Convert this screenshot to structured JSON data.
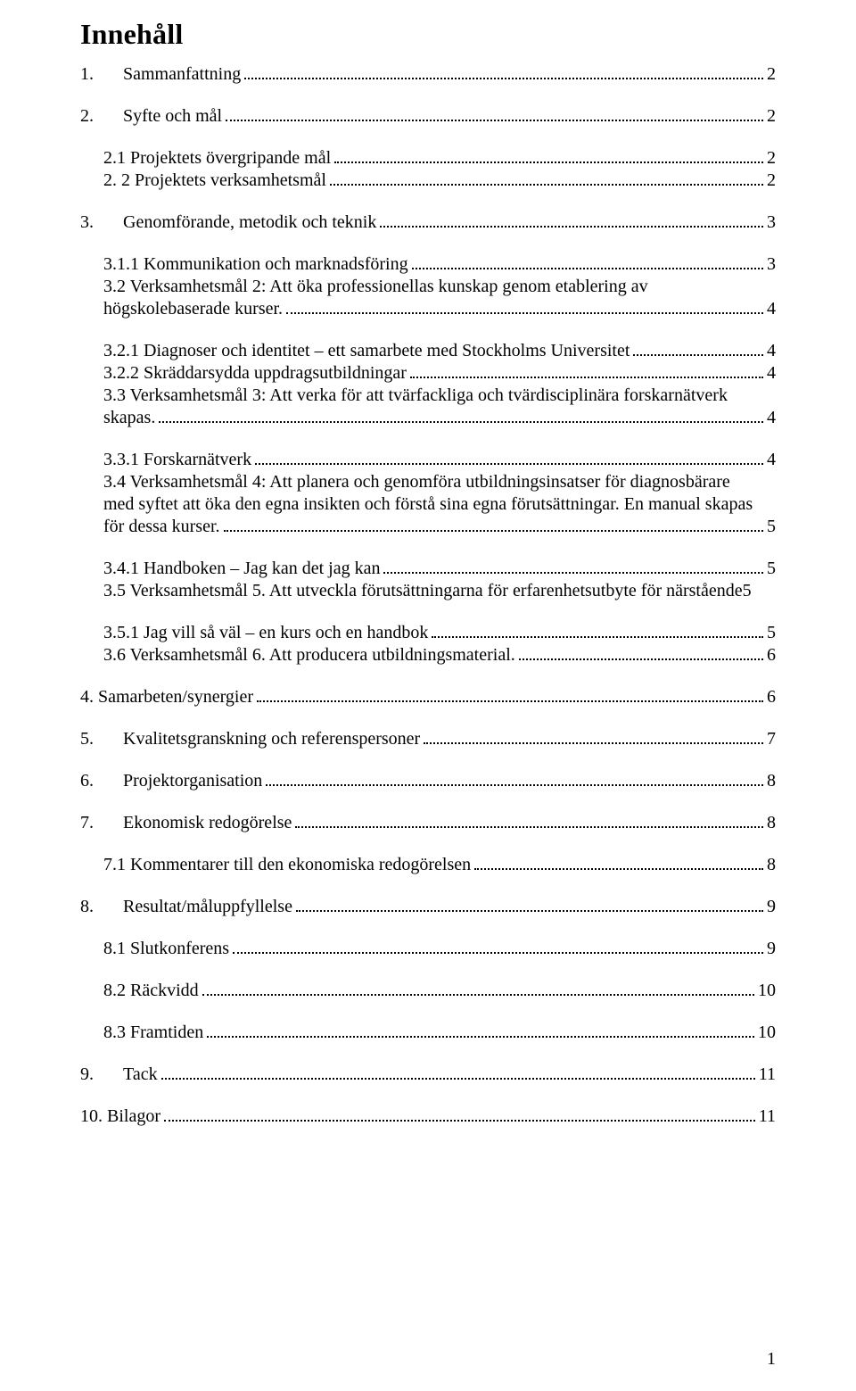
{
  "title": "Innehåll",
  "footer_page": "1",
  "groups": [
    {
      "entries": [
        {
          "indent": 0,
          "num": "1.",
          "num_width": 48,
          "label": "Sammanfattning",
          "page": "2"
        }
      ]
    },
    {
      "entries": [
        {
          "indent": 0,
          "num": "2.",
          "num_width": 48,
          "label": "Syfte och mål",
          "page": "2"
        }
      ]
    },
    {
      "entries": [
        {
          "indent": 1,
          "label": "2.1 Projektets övergripande mål",
          "page": "2"
        },
        {
          "indent": 1,
          "label": "2. 2 Projektets verksamhetsmål",
          "page": "2"
        }
      ]
    },
    {
      "entries": [
        {
          "indent": 0,
          "num": "3.",
          "num_width": 48,
          "label": "Genomförande, metodik och teknik",
          "page": "3"
        }
      ]
    },
    {
      "entries": [
        {
          "indent": 1,
          "label": "3.1.1 Kommunikation och marknadsföring",
          "page": "3"
        },
        {
          "indent": 1,
          "multiline_first": "3.2 Verksamhetsmål 2: Att öka professionellas kunskap genom etablering av",
          "multiline_last": "högskolebaserade kurser.",
          "page": "4"
        }
      ]
    },
    {
      "entries": [
        {
          "indent": 1,
          "label": "3.2.1 Diagnoser och identitet – ett samarbete med Stockholms Universitet",
          "page": "4"
        },
        {
          "indent": 1,
          "label": "3.2.2 Skräddarsydda uppdragsutbildningar",
          "page": "4"
        },
        {
          "indent": 1,
          "multiline_first": "3.3 Verksamhetsmål 3: Att verka för att tvärfackliga och tvärdisciplinära forskarnätverk",
          "multiline_last": "skapas.",
          "page": "4"
        }
      ]
    },
    {
      "entries": [
        {
          "indent": 1,
          "label": "3.3.1 Forskarnätverk",
          "page": "4"
        },
        {
          "indent": 1,
          "multiline_first": "3.4 Verksamhetsmål 4: Att planera och genomföra utbildningsinsatser för diagnosbärare",
          "multiline_mid": "med syftet att öka den egna insikten och förstå sina egna förutsättningar. En manual skapas",
          "multiline_last": "för dessa kurser.",
          "page": "5"
        }
      ]
    },
    {
      "entries": [
        {
          "indent": 1,
          "label": "3.4.1 Handboken – Jag kan det jag kan",
          "page": "5"
        },
        {
          "indent": 1,
          "label": "3.5 Verksamhetsmål 5. Att utveckla förutsättningarna för erfarenhetsutbyte för närstående",
          "page": "5",
          "no_leader": true
        }
      ]
    },
    {
      "entries": [
        {
          "indent": 1,
          "label": "3.5.1 Jag vill så väl – en kurs och en handbok",
          "page": "5"
        },
        {
          "indent": 1,
          "label": "3.6 Verksamhetsmål 6. Att producera utbildningsmaterial.",
          "page": "6"
        }
      ]
    },
    {
      "entries": [
        {
          "indent": 0,
          "label": "4. Samarbeten/synergier",
          "page": "6"
        }
      ]
    },
    {
      "entries": [
        {
          "indent": 0,
          "num": "5.",
          "num_width": 48,
          "label": "Kvalitetsgranskning och referenspersoner",
          "page": "7"
        }
      ]
    },
    {
      "entries": [
        {
          "indent": 0,
          "num": "6.",
          "num_width": 48,
          "label": "Projektorganisation",
          "page": "8"
        }
      ]
    },
    {
      "entries": [
        {
          "indent": 0,
          "num": "7.",
          "num_width": 48,
          "label": "Ekonomisk redogörelse",
          "page": "8"
        }
      ]
    },
    {
      "entries": [
        {
          "indent": 1,
          "label": "7.1 Kommentarer till den ekonomiska redogörelsen",
          "page": "8"
        }
      ]
    },
    {
      "entries": [
        {
          "indent": 0,
          "num": "8.",
          "num_width": 48,
          "label": "Resultat/måluppfyllelse",
          "page": "9"
        }
      ]
    },
    {
      "entries": [
        {
          "indent": 1,
          "label": "8.1 Slutkonferens",
          "page": "9"
        }
      ]
    },
    {
      "entries": [
        {
          "indent": 1,
          "label": "8.2 Räckvidd",
          "page": "10"
        }
      ]
    },
    {
      "entries": [
        {
          "indent": 1,
          "label": "8.3 Framtiden",
          "page": "10"
        }
      ]
    },
    {
      "entries": [
        {
          "indent": 0,
          "num": "9.",
          "num_width": 48,
          "label": "Tack",
          "page": "11"
        }
      ]
    },
    {
      "entries": [
        {
          "indent": 0,
          "label": "10. Bilagor",
          "page": "11"
        }
      ]
    }
  ]
}
